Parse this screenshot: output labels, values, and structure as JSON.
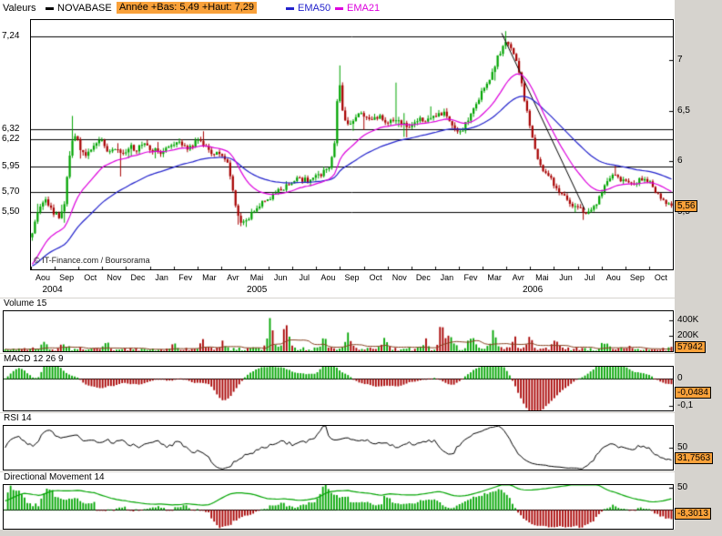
{
  "header": {
    "valeurs_label": "Valeurs",
    "series_name": "NOVABASE",
    "range_label": "Année +Bas: 5,49 +Haut: 7,29",
    "ema50_label": "EMA50",
    "ema21_label": "EMA21"
  },
  "colors": {
    "background": "#d6d3ce",
    "panel": "#ffffff",
    "up": "#00a400",
    "down": "#a80000",
    "series_swatch": "#000000",
    "ema50": "#2222cc",
    "ema21": "#dd00dd",
    "badge": "#f9a13a",
    "volume_ma": "#884422",
    "rsi_line": "#000000",
    "dmi_line": "#00a400",
    "trendline": "#000000"
  },
  "chart_data": {
    "type": "candlestick",
    "instrument": "NOVABASE",
    "x_axis": {
      "n_months": 27,
      "months": [
        "Aou",
        "Sep",
        "Oct",
        "Nov",
        "Dec",
        "Jan",
        "Fev",
        "Mar",
        "Avr",
        "Mai",
        "Jun",
        "Jul",
        "Aou",
        "Sep",
        "Oct",
        "Nov",
        "Dec",
        "Jan",
        "Fev",
        "Mar",
        "Avr",
        "Mai",
        "Jun",
        "Jul",
        "Aou",
        "Sep",
        "Oct"
      ],
      "years": [
        {
          "label": "2004",
          "month_pos": 0.9
        },
        {
          "label": "2005",
          "month_pos": 9.5
        },
        {
          "label": "2006",
          "month_pos": 21.1
        }
      ]
    },
    "price_axis": {
      "ylim": [
        4.93,
        7.4
      ],
      "left_levels": [
        {
          "label": "7,24",
          "value": 7.24
        },
        {
          "label": "6,32",
          "value": 6.32
        },
        {
          "label": "6,22",
          "value": 6.22
        },
        {
          "label": "5,95",
          "value": 5.95
        },
        {
          "label": "5,70",
          "value": 5.7
        },
        {
          "label": "5,50",
          "value": 5.5
        }
      ],
      "right_ticks": [
        {
          "label": "7",
          "value": 7.0
        },
        {
          "label": "6,5",
          "value": 6.5
        },
        {
          "label": "6",
          "value": 6.0
        },
        {
          "label": "5,5",
          "value": 5.5
        }
      ],
      "last_price": {
        "label": "5,56",
        "value": 5.56
      }
    },
    "series": {
      "n_candles": 240,
      "year_low": 5.49,
      "year_high": 7.29,
      "anchors_t": [
        0,
        0.25,
        0.5,
        0.75,
        1.0,
        1.15,
        1.35,
        1.5,
        1.65,
        1.85,
        2.05,
        2.3,
        2.6,
        2.9,
        3.2,
        3.5,
        3.8,
        4.1,
        4.4,
        4.7,
        5.0,
        5.4,
        5.8,
        6.2,
        6.6,
        7.0,
        7.4,
        7.7,
        8.0,
        8.3,
        8.55,
        8.75,
        9.0,
        9.3,
        9.7,
        10.1,
        10.5,
        10.9,
        11.3,
        11.7,
        12.0,
        12.3,
        12.55,
        12.75,
        12.95,
        13.1,
        13.35,
        13.6,
        13.9,
        14.2,
        14.6,
        15.0,
        15.4,
        15.8,
        16.2,
        16.6,
        17.0,
        17.4,
        17.8,
        18.1,
        18.5,
        18.8,
        19.1,
        19.4,
        19.65,
        19.85,
        20.0,
        20.15,
        20.35,
        20.55,
        20.85,
        21.15,
        21.45,
        21.7,
        22.0,
        22.3,
        22.6,
        23.0,
        23.3,
        23.6,
        23.9,
        24.2,
        24.5,
        24.8,
        25.1,
        25.4,
        25.7,
        26.0,
        26.3,
        26.6,
        26.9,
        27.0
      ],
      "anchors_close": [
        5.3,
        5.52,
        5.62,
        5.55,
        5.47,
        5.42,
        5.58,
        5.92,
        6.15,
        6.28,
        6.12,
        6.06,
        6.16,
        6.22,
        6.1,
        6.14,
        6.06,
        6.16,
        6.1,
        6.18,
        6.12,
        6.08,
        6.15,
        6.18,
        6.12,
        6.2,
        6.12,
        6.08,
        6.05,
        5.95,
        5.6,
        5.42,
        5.38,
        5.52,
        5.58,
        5.65,
        5.72,
        5.78,
        5.82,
        5.8,
        5.86,
        5.9,
        5.95,
        6.15,
        6.85,
        6.5,
        6.35,
        6.42,
        6.5,
        6.4,
        6.45,
        6.38,
        6.42,
        6.35,
        6.4,
        6.42,
        6.45,
        6.48,
        6.35,
        6.28,
        6.45,
        6.6,
        6.72,
        6.88,
        7.02,
        7.12,
        7.22,
        7.15,
        7.05,
        6.9,
        6.55,
        6.18,
        5.95,
        5.88,
        5.78,
        5.68,
        5.62,
        5.55,
        5.48,
        5.52,
        5.6,
        5.78,
        5.86,
        5.82,
        5.8,
        5.76,
        5.82,
        5.8,
        5.72,
        5.62,
        5.56,
        5.56
      ],
      "wick_events": [
        {
          "t": 1.65,
          "high": 6.45
        },
        {
          "t": 3.7,
          "low": 5.85
        },
        {
          "t": 9.0,
          "low": 5.35
        },
        {
          "t": 12.95,
          "high": 6.95
        },
        {
          "t": 15.35,
          "high": 6.78
        },
        {
          "t": 20.0,
          "high": 7.29
        },
        {
          "t": 23.3,
          "low": 5.42
        }
      ]
    },
    "overlays": [
      {
        "name": "EMA50",
        "period": 50
      },
      {
        "name": "EMA21",
        "period": 21
      }
    ],
    "trendline": {
      "t1": 19.8,
      "p1": 7.27,
      "t2": 23.3,
      "p2": 5.52
    },
    "panels": {
      "volume": {
        "label": "Volume 15",
        "badge": {
          "label": "57942",
          "value": 57942
        },
        "ticks": [
          {
            "label": "400K",
            "value": 400000
          },
          {
            "label": "200K",
            "value": 200000
          }
        ],
        "ylim": [
          0,
          520000
        ],
        "ma_period": 15,
        "spikes": [
          {
            "t": 1.6,
            "v": 100000
          },
          {
            "t": 2.4,
            "v": 70000
          },
          {
            "t": 4.1,
            "v": 70000
          },
          {
            "t": 6.9,
            "v": 80000
          },
          {
            "t": 8.0,
            "v": 100000
          },
          {
            "t": 8.8,
            "v": 130000
          },
          {
            "t": 10.75,
            "v": 470000
          },
          {
            "t": 11.4,
            "v": 330000
          },
          {
            "t": 12.9,
            "v": 150000
          },
          {
            "t": 13.9,
            "v": 220000
          },
          {
            "t": 15.4,
            "v": 160000
          },
          {
            "t": 17.0,
            "v": 140000
          },
          {
            "t": 17.7,
            "v": 290000
          },
          {
            "t": 18.05,
            "v": 310000
          },
          {
            "t": 18.9,
            "v": 230000
          },
          {
            "t": 19.8,
            "v": 210000
          },
          {
            "t": 20.6,
            "v": 180000
          },
          {
            "t": 21.3,
            "v": 170000
          },
          {
            "t": 22.3,
            "v": 140000
          },
          {
            "t": 24.3,
            "v": 110000
          },
          {
            "t": 25.3,
            "v": 90000
          }
        ]
      },
      "macd": {
        "label": "MACD 12 26 9",
        "badge": {
          "label": "-0,0484",
          "value": -0.0484
        },
        "ticks": [
          {
            "label": "0",
            "value": 0
          },
          {
            "label": "-0,1",
            "value": -0.1
          }
        ],
        "ylim": [
          -0.115,
          0.042
        ],
        "fast": 12,
        "slow": 26,
        "signal": 9
      },
      "rsi": {
        "label": "RSI 14",
        "badge": {
          "label": "31,7563",
          "value": 31.7563
        },
        "ticks": [
          {
            "label": "50",
            "value": 50
          }
        ],
        "ylim": [
          10,
          90
        ],
        "period": 14
      },
      "dmi": {
        "label": "Directional Movement 14",
        "badge": {
          "label": "-8,3013",
          "value": -8.3013
        },
        "ticks": [
          {
            "label": "50",
            "value": 50
          }
        ],
        "ylim": [
          -45,
          57
        ],
        "period": 14
      }
    },
    "copyright": "© IT-Finance.com / Boursorama"
  }
}
